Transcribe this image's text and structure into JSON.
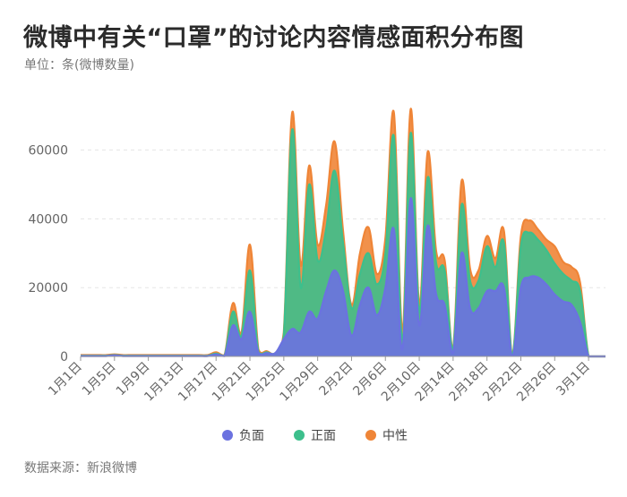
{
  "title": "微博中有关“口罩”的讨论内容情感面积分布图",
  "subtitle": "单位：条(微博数量)",
  "source": "数据来源：新浪微博",
  "colors": {
    "负面": "#6b72e0",
    "正面": "#3dbf8c",
    "中性": "#ef8537",
    "grid": "#e5e5e5",
    "axis": "#999999"
  },
  "chart_data": {
    "type": "area",
    "stacked": true,
    "x": [
      "1月1日",
      "1月2日",
      "1月3日",
      "1月4日",
      "1月5日",
      "1月6日",
      "1月7日",
      "1月8日",
      "1月9日",
      "1月10日",
      "1月11日",
      "1月12日",
      "1月13日",
      "1月14日",
      "1月15日",
      "1月16日",
      "1月17日",
      "1月18日",
      "1月19日",
      "1月20日",
      "1月21日",
      "1月22日",
      "1月23日",
      "1月24日",
      "1月25日",
      "1月26日",
      "1月27日",
      "1月28日",
      "1月29日",
      "1月30日",
      "1月31日",
      "2月1日",
      "2月2日",
      "2月3日",
      "2月4日",
      "2月5日",
      "2月6日",
      "2月7日",
      "2月8日",
      "2月9日",
      "2月10日",
      "2月11日",
      "2月12日",
      "2月13日",
      "2月14日",
      "2月15日",
      "2月16日",
      "2月17日",
      "2月18日",
      "2月19日",
      "2月20日",
      "2月21日",
      "2月22日",
      "2月23日",
      "2月24日",
      "2月25日",
      "2月26日",
      "2月27日",
      "2月28日",
      "2月29日",
      "3月1日",
      "3月2日",
      "3月3日"
    ],
    "x_tick_labels": [
      "1月1日",
      "1月5日",
      "1月9日",
      "1月13日",
      "1月17日",
      "1月21日",
      "1月25日",
      "1月29日",
      "2月2日",
      "2月6日",
      "2月10日",
      "2月14日",
      "2月18日",
      "2月22日",
      "2月26日",
      "3月1日"
    ],
    "series": [
      {
        "name": "负面",
        "values": [
          100,
          100,
          100,
          100,
          300,
          100,
          100,
          100,
          100,
          100,
          100,
          100,
          100,
          100,
          100,
          100,
          600,
          100,
          9000,
          5000,
          13000,
          1000,
          1000,
          1000,
          5000,
          8000,
          7000,
          13000,
          11000,
          19000,
          25000,
          19000,
          6000,
          15000,
          20000,
          12000,
          20000,
          37000,
          2000,
          46000,
          9000,
          38000,
          18000,
          15000,
          1000,
          30000,
          14000,
          14000,
          19000,
          19000,
          20000,
          300,
          20000,
          23000,
          23000,
          21000,
          18000,
          16000,
          15000,
          10000,
          0,
          0,
          0
        ]
      },
      {
        "name": "正面",
        "values": [
          100,
          100,
          100,
          100,
          100,
          100,
          100,
          100,
          100,
          100,
          100,
          100,
          100,
          100,
          100,
          100,
          200,
          100,
          4000,
          1000,
          12000,
          300,
          200,
          0,
          1000,
          58000,
          13000,
          37000,
          17000,
          18000,
          29000,
          14000,
          8000,
          9000,
          10000,
          9000,
          10000,
          27000,
          3000,
          19000,
          4000,
          14000,
          9000,
          10000,
          1000,
          14000,
          8000,
          8000,
          13000,
          7000,
          13000,
          200,
          12000,
          13000,
          11000,
          10000,
          9000,
          8000,
          7000,
          9000,
          0,
          0,
          0
        ]
      },
      {
        "name": "中性",
        "values": [
          200,
          200,
          200,
          200,
          200,
          200,
          200,
          200,
          200,
          200,
          200,
          200,
          200,
          200,
          200,
          200,
          400,
          200,
          2500,
          1000,
          7500,
          700,
          300,
          0,
          1000,
          5000,
          6500,
          5500,
          4500,
          7000,
          8500,
          3500,
          1000,
          6000,
          7500,
          3000,
          4500,
          7000,
          3000,
          7000,
          2000,
          7500,
          3500,
          3000,
          500,
          7000,
          3500,
          3000,
          3000,
          2500,
          3500,
          300,
          3000,
          3500,
          3000,
          3000,
          5000,
          3500,
          4000,
          2500,
          0,
          0,
          0
        ]
      }
    ],
    "ylim": [
      0,
      75000
    ],
    "y_ticks": [
      0,
      20000,
      40000,
      60000
    ],
    "grid": true,
    "legend": "bottom-center"
  }
}
